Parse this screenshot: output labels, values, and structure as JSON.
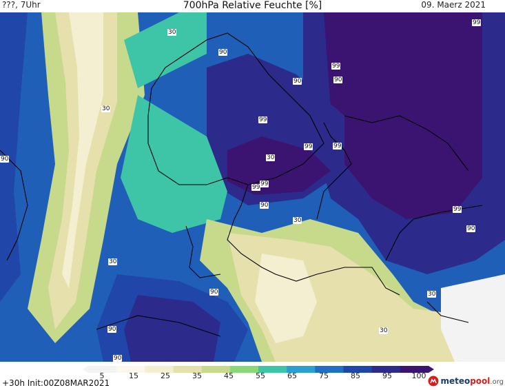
{
  "header": {
    "left": "???, 7Uhr",
    "title": "700hPa Relative Feuchte [%]",
    "right": "09. Maerz 2021"
  },
  "footer": {
    "run_info": "+30h Init:00Z08MAR2021"
  },
  "logo": {
    "brand_a": "meteo",
    "brand_b": "pool",
    "domain": ".org"
  },
  "colorbar": {
    "ticks": [
      "5",
      "15",
      "25",
      "35",
      "45",
      "55",
      "65",
      "75",
      "85",
      "95",
      "100"
    ],
    "colors": [
      "#f3f3f3",
      "#fbf8ec",
      "#f4efd0",
      "#e6e1ac",
      "#c7da8c",
      "#8cd67a",
      "#3ec5a8",
      "#2a9fd2",
      "#1f6fc4",
      "#1f46a8",
      "#2c2a8a",
      "#3a1470"
    ]
  },
  "contour_labels": [
    {
      "text": "30"
    },
    {
      "text": "90"
    },
    {
      "text": "90"
    },
    {
      "text": "99"
    },
    {
      "text": "90"
    },
    {
      "text": "30"
    },
    {
      "text": "99"
    },
    {
      "text": "99"
    },
    {
      "text": "99"
    },
    {
      "text": "30"
    },
    {
      "text": "99"
    },
    {
      "text": "99"
    },
    {
      "text": "90"
    },
    {
      "text": "90"
    },
    {
      "text": "99"
    },
    {
      "text": "30"
    },
    {
      "text": "90"
    },
    {
      "text": "30"
    },
    {
      "text": "90"
    },
    {
      "text": "30"
    },
    {
      "text": "30"
    },
    {
      "text": "90"
    },
    {
      "text": "30"
    },
    {
      "text": "90"
    },
    {
      "text": "99"
    }
  ]
}
